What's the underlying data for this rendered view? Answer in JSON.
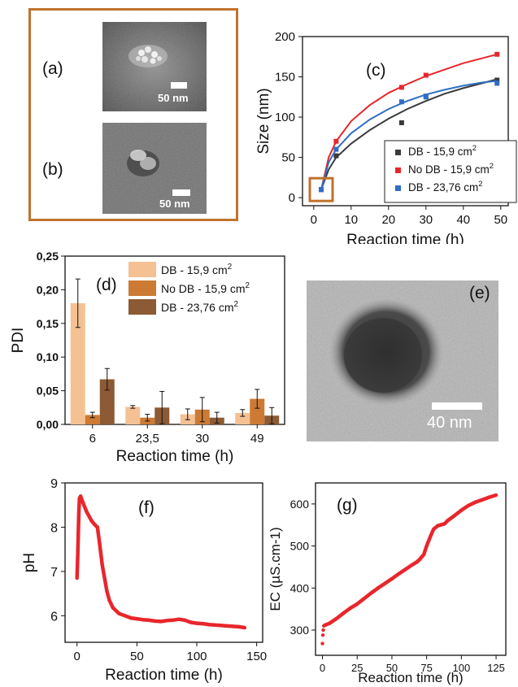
{
  "panels": {
    "a": {
      "label": "(a)",
      "scale": "50 nm"
    },
    "b": {
      "label": "(b)",
      "scale": "50 nm"
    },
    "e": {
      "label": "(e)",
      "scale": "40 nm"
    }
  },
  "colors": {
    "frame": "#c0722d",
    "red": "#e8262c",
    "blue": "#2f6fc4",
    "dark": "#3a3a3a",
    "bar1": "#f5c193",
    "bar2": "#cc7a34",
    "bar3": "#8c5a34"
  },
  "chart_data": [
    {
      "id": "c",
      "panel_label": "(c)",
      "type": "scatter",
      "xlabel": "Reaction time (h)",
      "ylabel": "Size (nm)",
      "xlim": [
        -3,
        52
      ],
      "ylim": [
        -10,
        200
      ],
      "xticks": [
        0,
        10,
        20,
        30,
        40,
        50
      ],
      "yticks": [
        0,
        50,
        100,
        150,
        200
      ],
      "legend_position": "bottom-right",
      "series": [
        {
          "name": "DB - 15,9 cm²",
          "color": "#3a3a3a",
          "x": [
            2,
            6,
            23.5,
            30,
            49
          ],
          "y": [
            10,
            52,
            93,
            126,
            146
          ],
          "fit": [
            [
              2,
              10
            ],
            [
              4,
              35
            ],
            [
              6,
              50
            ],
            [
              10,
              67
            ],
            [
              15,
              84
            ],
            [
              20,
              98
            ],
            [
              25,
              110
            ],
            [
              30,
              120
            ],
            [
              35,
              129
            ],
            [
              40,
              136
            ],
            [
              45,
              142
            ],
            [
              49,
              147
            ]
          ]
        },
        {
          "name": "No DB - 15,9 cm²",
          "color": "#e8262c",
          "x": [
            2,
            6,
            23.5,
            30,
            49
          ],
          "y": [
            10,
            70,
            137,
            152,
            178
          ],
          "fit": [
            [
              2,
              10
            ],
            [
              4,
              50
            ],
            [
              6,
              70
            ],
            [
              10,
              95
            ],
            [
              15,
              115
            ],
            [
              20,
              130
            ],
            [
              25,
              141
            ],
            [
              30,
              151
            ],
            [
              35,
              159
            ],
            [
              40,
              167
            ],
            [
              45,
              173
            ],
            [
              49,
              178
            ]
          ]
        },
        {
          "name": "DB - 23,76 cm²",
          "color": "#2f6fc4",
          "x": [
            2,
            6,
            23.5,
            30,
            49
          ],
          "y": [
            10,
            60,
            119,
            125,
            142
          ],
          "fit": [
            [
              2,
              10
            ],
            [
              4,
              44
            ],
            [
              6,
              60
            ],
            [
              10,
              80
            ],
            [
              15,
              97
            ],
            [
              20,
              110
            ],
            [
              25,
              120
            ],
            [
              30,
              128
            ],
            [
              35,
              134
            ],
            [
              40,
              139
            ],
            [
              45,
              143
            ],
            [
              49,
              145
            ]
          ]
        }
      ]
    },
    {
      "id": "d",
      "panel_label": "(d)",
      "type": "bar",
      "xlabel": "Reaction time (h)",
      "ylabel": "PDI",
      "ylim": [
        0,
        0.25
      ],
      "yticks": [
        "0,00",
        "0,05",
        "0,10",
        "0,15",
        "0,20",
        "0,25"
      ],
      "categories": [
        "6",
        "23,5",
        "30",
        "49"
      ],
      "legend_position": "top-right",
      "series": [
        {
          "name": "DB - 15,9 cm²",
          "color": "#f5c193",
          "values": [
            0.18,
            0.026,
            0.015,
            0.017
          ],
          "errors": [
            0.036,
            0.002,
            0.008,
            0.005
          ]
        },
        {
          "name": "No DB - 15,9 cm²",
          "color": "#cc7a34",
          "values": [
            0.014,
            0.01,
            0.022,
            0.038
          ],
          "errors": [
            0.004,
            0.005,
            0.018,
            0.014
          ]
        },
        {
          "name": "DB - 23,76 cm²",
          "color": "#8c5a34",
          "values": [
            0.067,
            0.025,
            0.01,
            0.013
          ],
          "errors": [
            0.016,
            0.024,
            0.008,
            0.012
          ]
        }
      ]
    },
    {
      "id": "f",
      "panel_label": "(f)",
      "type": "scatter",
      "xlabel": "Reaction time (h)",
      "ylabel": "pH",
      "xlim": [
        -10,
        155
      ],
      "ylim": [
        5.4,
        9
      ],
      "xticks": [
        0,
        50,
        100,
        150
      ],
      "yticks": [
        6,
        7,
        8,
        9
      ],
      "series": [
        {
          "name": "",
          "color": "#e8262c",
          "x": [
            0,
            0.5,
            1,
            1.5,
            2,
            3,
            5,
            8,
            12,
            15,
            17,
            19,
            21,
            23,
            25,
            27,
            30,
            35,
            40,
            45,
            50,
            55,
            60,
            65,
            70,
            75,
            80,
            85,
            90,
            95,
            100,
            105,
            110,
            115,
            120,
            125,
            130,
            135,
            140
          ],
          "y": [
            6.85,
            7.3,
            7.8,
            8.3,
            8.65,
            8.7,
            8.55,
            8.35,
            8.15,
            8.05,
            8.0,
            7.6,
            7.15,
            6.85,
            6.55,
            6.35,
            6.18,
            6.05,
            6.0,
            5.95,
            5.93,
            5.91,
            5.9,
            5.88,
            5.87,
            5.89,
            5.9,
            5.92,
            5.9,
            5.85,
            5.83,
            5.82,
            5.8,
            5.79,
            5.78,
            5.77,
            5.76,
            5.75,
            5.73
          ]
        }
      ]
    },
    {
      "id": "g",
      "panel_label": "(g)",
      "type": "scatter",
      "xlabel": "Reaction time (h)",
      "ylabel": "EC (µS.cm-1)",
      "xlim": [
        -5,
        132
      ],
      "ylim": [
        240,
        650
      ],
      "xticks": [
        0,
        25,
        50,
        75,
        100,
        125
      ],
      "yticks": [
        300,
        400,
        500,
        600
      ],
      "series": [
        {
          "name": "",
          "color": "#e8262c",
          "x": [
            0,
            0.3,
            0.6,
            1,
            2,
            5,
            10,
            15,
            20,
            25,
            30,
            35,
            40,
            45,
            50,
            55,
            60,
            65,
            68,
            70,
            73,
            75,
            78,
            80,
            83,
            85,
            88,
            90,
            95,
            100,
            105,
            110,
            115,
            120,
            125
          ],
          "y": [
            268,
            288,
            300,
            310,
            312,
            316,
            327,
            340,
            352,
            362,
            375,
            388,
            400,
            411,
            422,
            434,
            445,
            456,
            462,
            468,
            480,
            500,
            525,
            540,
            548,
            550,
            553,
            560,
            572,
            585,
            596,
            604,
            610,
            616,
            621
          ]
        }
      ]
    }
  ]
}
